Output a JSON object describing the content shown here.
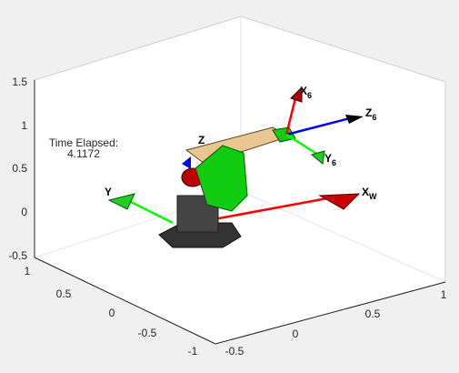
{
  "axes": {
    "z_ticks": [
      "1.5",
      "1",
      "0.5",
      "0",
      "-0.5"
    ],
    "y_ticks": [
      "1",
      "0.5",
      "0",
      "-0.5",
      "-1"
    ],
    "x_ticks": [
      "-0.5",
      "0",
      "0.5",
      "1"
    ]
  },
  "annotation": {
    "title": "Time Elapsed:",
    "value": "4.1172"
  },
  "frames": [
    {
      "label": "X",
      "sub": "6"
    },
    {
      "label": "Z",
      "sub": "6"
    },
    {
      "label": "Y",
      "sub": "6"
    },
    {
      "label": "X",
      "sub": "W"
    },
    {
      "label": "Y"
    },
    {
      "label": "Z"
    }
  ]
}
